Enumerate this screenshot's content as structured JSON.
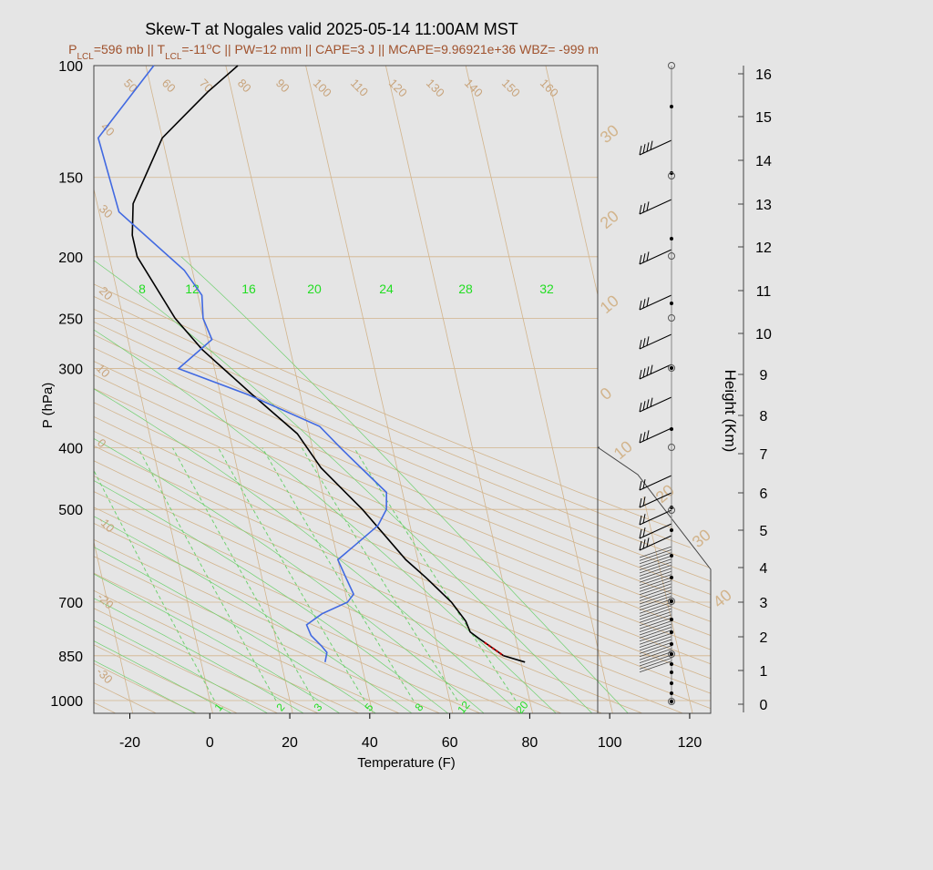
{
  "title": "Skew-T at Nogales valid 2025-05-14 11:00AM MST",
  "subtitle": {
    "parts": [
      {
        "t": "P",
        "s": "base"
      },
      {
        "t": "LCL",
        "s": "sub"
      },
      {
        "t": "=596 mb || T",
        "s": "base"
      },
      {
        "t": "LCL",
        "s": "sub"
      },
      {
        "t": "=-11",
        "s": "base"
      },
      {
        "t": "o",
        "s": "sup"
      },
      {
        "t": "C || PW=12 mm || CAPE=3 J || MCAPE=9.96921e+36 WBZ= -999 m",
        "s": "base"
      }
    ]
  },
  "chart_data": {
    "type": "line",
    "xlabel": "Temperature (F)",
    "ylabel": "P (hPa)",
    "y2label": "Height (Km)",
    "xlim": [
      -29,
      97
    ],
    "pressure_ticks": [
      100,
      150,
      200,
      250,
      300,
      400,
      500,
      700,
      850,
      1000
    ],
    "temperature_ticks": [
      -20,
      0,
      20,
      40,
      60,
      80,
      100,
      120
    ],
    "height_ticks": [
      0,
      1,
      2,
      3,
      4,
      5,
      6,
      7,
      8,
      9,
      10,
      11,
      12,
      13,
      14,
      15,
      16
    ],
    "dry_adiabat_labels": [
      "50",
      "60",
      "70",
      "80",
      "90",
      "100",
      "110",
      "120",
      "130",
      "140",
      "150",
      "160"
    ],
    "isotherm_side_labels": [
      "40",
      "30",
      "20",
      "10",
      "0",
      "-10",
      "-20",
      "-30"
    ],
    "isotherm_right_labels": [
      "30",
      "20",
      "10",
      "0",
      "10",
      "20",
      "30",
      "40"
    ],
    "moist_adiabat_labels": [
      "8",
      "12",
      "16",
      "20",
      "24",
      "28",
      "32"
    ],
    "mixing_ratio_labels": [
      "1",
      "2",
      "3",
      "5",
      "8",
      "12",
      "20"
    ],
    "series": [
      {
        "role": "temperature",
        "color": "#000000",
        "points": [
          [
            870,
            81
          ],
          [
            850,
            76
          ],
          [
            800,
            71
          ],
          [
            780,
            69
          ],
          [
            750,
            68.5
          ],
          [
            700,
            66
          ],
          [
            640,
            61
          ],
          [
            600,
            57
          ],
          [
            500,
            49
          ],
          [
            430,
            41
          ],
          [
            380,
            37
          ],
          [
            330,
            28
          ],
          [
            280,
            18
          ],
          [
            250,
            13
          ],
          [
            200,
            7
          ],
          [
            185,
            7
          ],
          [
            165,
            9
          ],
          [
            130,
            20
          ],
          [
            110,
            34
          ],
          [
            100,
            43
          ]
        ]
      },
      {
        "role": "dewpoint",
        "color": "#4169e1",
        "points": [
          [
            870,
            31
          ],
          [
            840,
            32
          ],
          [
            820,
            31
          ],
          [
            790,
            29
          ],
          [
            760,
            28.5
          ],
          [
            730,
            33
          ],
          [
            700,
            40
          ],
          [
            680,
            42
          ],
          [
            640,
            41
          ],
          [
            600,
            40
          ],
          [
            570,
            45
          ],
          [
            530,
            52
          ],
          [
            500,
            55
          ],
          [
            470,
            56
          ],
          [
            430,
            51
          ],
          [
            400,
            47
          ],
          [
            370,
            43
          ],
          [
            330,
            27
          ],
          [
            300,
            11
          ],
          [
            270,
            21
          ],
          [
            250,
            20
          ],
          [
            230,
            21
          ],
          [
            210,
            18
          ],
          [
            170,
            5
          ],
          [
            130,
            4
          ],
          [
            100,
            22
          ]
        ]
      },
      {
        "role": "parcel",
        "color": "#cc0000",
        "points": [
          [
            810,
            72
          ],
          [
            850,
            76
          ]
        ]
      }
    ],
    "wind_barbs": {
      "count_upper": 13,
      "count_lower": 38
    }
  }
}
